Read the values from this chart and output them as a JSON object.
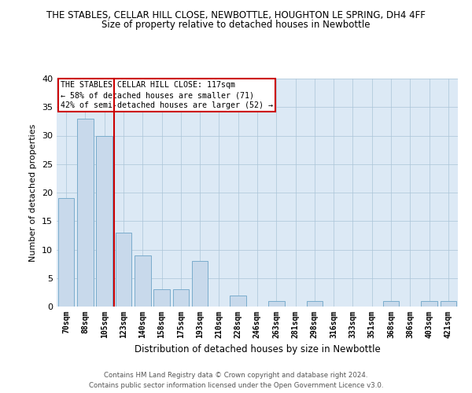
{
  "title": "THE STABLES, CELLAR HILL CLOSE, NEWBOTTLE, HOUGHTON LE SPRING, DH4 4FF",
  "subtitle": "Size of property relative to detached houses in Newbottle",
  "xlabel": "Distribution of detached houses by size in Newbottle",
  "ylabel": "Number of detached properties",
  "footer_line1": "Contains HM Land Registry data © Crown copyright and database right 2024.",
  "footer_line2": "Contains public sector information licensed under the Open Government Licence v3.0.",
  "bins": [
    "70sqm",
    "88sqm",
    "105sqm",
    "123sqm",
    "140sqm",
    "158sqm",
    "175sqm",
    "193sqm",
    "210sqm",
    "228sqm",
    "246sqm",
    "263sqm",
    "281sqm",
    "298sqm",
    "316sqm",
    "333sqm",
    "351sqm",
    "368sqm",
    "386sqm",
    "403sqm",
    "421sqm"
  ],
  "values": [
    19,
    33,
    30,
    13,
    9,
    3,
    3,
    8,
    0,
    2,
    0,
    1,
    0,
    1,
    0,
    0,
    0,
    1,
    0,
    1,
    1
  ],
  "bar_color": "#c8d9eb",
  "bar_edge_color": "#7aaccc",
  "vline_color": "#cc0000",
  "annotation_line1": "THE STABLES CELLAR HILL CLOSE: 117sqm",
  "annotation_line2": "← 58% of detached houses are smaller (71)",
  "annotation_line3": "42% of semi-detached houses are larger (52) →",
  "annotation_box_color": "#ffffff",
  "annotation_box_edge_color": "#cc0000",
  "ylim": [
    0,
    40
  ],
  "background_color": "#dce9f5"
}
